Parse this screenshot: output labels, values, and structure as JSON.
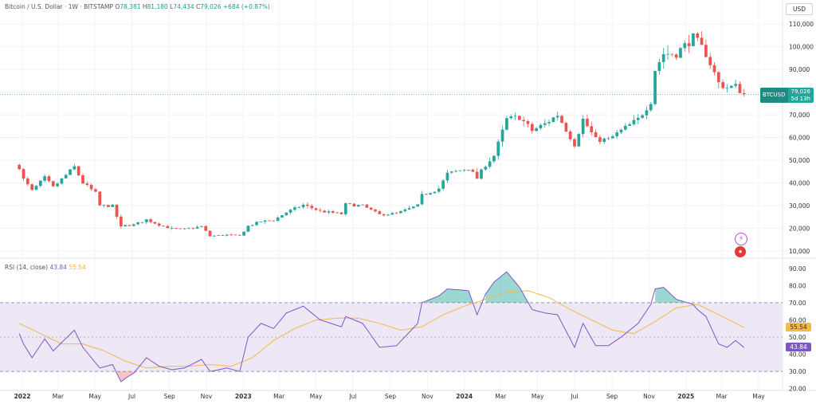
{
  "header": {
    "symbol": "Bitcoin / U.S. Dollar · 1W · BITSTAMP",
    "open_label": "O",
    "open": "78,381",
    "high_label": "H",
    "high": "81,180",
    "low_label": "L",
    "low": "74,434",
    "close_label": "C",
    "close": "79,026",
    "change": "+684 (+0.87%)"
  },
  "currency_button": "USD",
  "price_tag": {
    "symbol": "BTCUSD",
    "price": "79,026",
    "countdown": "5d 13h"
  },
  "rsi_legend": {
    "label": "RSI (14, close)",
    "rsi_value": "43.84",
    "ma_value": "55.54"
  },
  "colors": {
    "up": "#26a69a",
    "down": "#ef5350",
    "rsi": "#7e57c2",
    "rsi_ma": "#f2b94b",
    "band": "#ede7f6",
    "grid": "#f0f3fa"
  },
  "chart_data": [
    {
      "type": "candlestick",
      "title": "Bitcoin / U.S. Dollar · 1W · BITSTAMP",
      "x_tick_labels": [
        "2022",
        "Mar",
        "May",
        "Jul",
        "Sep",
        "Nov",
        "2023",
        "Mar",
        "May",
        "Jul",
        "Sep",
        "Nov",
        "2024",
        "Mar",
        "May",
        "Jul",
        "Sep",
        "Nov",
        "2025",
        "Mar",
        "May"
      ],
      "y_tick_labels": [
        "10,000",
        "20,000",
        "30,000",
        "40,000",
        "50,000",
        "60,000",
        "70,000",
        "80,000",
        "90,000",
        "100,000",
        "110,000"
      ],
      "ylim": [
        7500,
        115000
      ],
      "grid": true,
      "last_price": 79026,
      "close_path": [
        [
          "2021-12-27",
          47000
        ],
        [
          "2022-01-03",
          41500
        ],
        [
          "2022-01-17",
          36500
        ],
        [
          "2022-02-07",
          42200
        ],
        [
          "2022-02-21",
          38000
        ],
        [
          "2022-03-28",
          47000
        ],
        [
          "2022-04-11",
          40000
        ],
        [
          "2022-05-02",
          35500
        ],
        [
          "2022-05-09",
          30000
        ],
        [
          "2022-05-30",
          29800
        ],
        [
          "2022-06-13",
          20500
        ],
        [
          "2022-06-20",
          21200
        ],
        [
          "2022-07-04",
          21500
        ],
        [
          "2022-07-25",
          23800
        ],
        [
          "2022-08-15",
          21500
        ],
        [
          "2022-09-05",
          19800
        ],
        [
          "2022-09-26",
          19500
        ],
        [
          "2022-10-24",
          20800
        ],
        [
          "2022-11-07",
          16500
        ],
        [
          "2022-12-05",
          17100
        ],
        [
          "2022-12-26",
          16600
        ],
        [
          "2023-01-09",
          21000
        ],
        [
          "2023-01-30",
          23000
        ],
        [
          "2023-02-20",
          23500
        ],
        [
          "2023-03-13",
          27000
        ],
        [
          "2023-04-10",
          30300
        ],
        [
          "2023-05-08",
          27500
        ],
        [
          "2023-06-12",
          26300
        ],
        [
          "2023-06-19",
          30500
        ],
        [
          "2023-07-17",
          29900
        ],
        [
          "2023-08-14",
          26000
        ],
        [
          "2023-09-11",
          26500
        ],
        [
          "2023-10-16",
          30000
        ],
        [
          "2023-10-23",
          34500
        ],
        [
          "2023-11-20",
          37500
        ],
        [
          "2023-12-04",
          44000
        ],
        [
          "2024-01-08",
          46500
        ],
        [
          "2024-01-22",
          42000
        ],
        [
          "2024-02-05",
          48000
        ],
        [
          "2024-02-19",
          52000
        ],
        [
          "2024-03-11",
          68000
        ],
        [
          "2024-04-01",
          69000
        ],
        [
          "2024-04-22",
          63000
        ],
        [
          "2024-05-13",
          66000
        ],
        [
          "2024-06-03",
          70000
        ],
        [
          "2024-07-01",
          57000
        ],
        [
          "2024-07-15",
          68000
        ],
        [
          "2024-08-05",
          59000
        ],
        [
          "2024-08-26",
          59000
        ],
        [
          "2024-09-16",
          63000
        ],
        [
          "2024-10-14",
          68000
        ],
        [
          "2024-11-04",
          76000
        ],
        [
          "2024-11-11",
          90000
        ],
        [
          "2024-11-25",
          97000
        ],
        [
          "2024-12-16",
          97000
        ],
        [
          "2025-01-13",
          104000
        ],
        [
          "2025-01-20",
          102000
        ],
        [
          "2025-02-03",
          97000
        ],
        [
          "2025-02-24",
          84000
        ],
        [
          "2025-03-10",
          82000
        ],
        [
          "2025-03-24",
          82500
        ],
        [
          "2025-04-07",
          79026
        ]
      ]
    },
    {
      "type": "line",
      "title": "RSI (14, close)",
      "y_tick_labels": [
        "20.00",
        "30.00",
        "40.00",
        "50.00",
        "60.00",
        "70.00",
        "80.00",
        "90.00"
      ],
      "ylim": [
        18,
        95
      ],
      "bands": [
        30,
        70
      ],
      "midline": 50,
      "series": [
        {
          "name": "RSI",
          "last": 43.84,
          "values": [
            [
              "2021-12-27",
              52
            ],
            [
              "2022-01-03",
              46
            ],
            [
              "2022-01-17",
              38
            ],
            [
              "2022-02-07",
              49
            ],
            [
              "2022-02-21",
              42
            ],
            [
              "2022-03-28",
              54
            ],
            [
              "2022-04-11",
              44
            ],
            [
              "2022-05-09",
              32
            ],
            [
              "2022-05-30",
              34
            ],
            [
              "2022-06-13",
              24
            ],
            [
              "2022-06-20",
              26
            ],
            [
              "2022-07-04",
              29
            ],
            [
              "2022-07-25",
              38
            ],
            [
              "2022-08-15",
              33
            ],
            [
              "2022-09-05",
              31
            ],
            [
              "2022-09-26",
              32
            ],
            [
              "2022-10-24",
              37
            ],
            [
              "2022-11-07",
              30
            ],
            [
              "2022-12-05",
              32
            ],
            [
              "2022-12-26",
              30
            ],
            [
              "2023-01-09",
              50
            ],
            [
              "2023-01-30",
              58
            ],
            [
              "2023-02-20",
              55
            ],
            [
              "2023-03-13",
              64
            ],
            [
              "2023-04-10",
              68
            ],
            [
              "2023-05-08",
              60
            ],
            [
              "2023-06-12",
              56
            ],
            [
              "2023-06-19",
              62
            ],
            [
              "2023-07-17",
              58
            ],
            [
              "2023-08-14",
              44
            ],
            [
              "2023-09-11",
              45
            ],
            [
              "2023-10-16",
              58
            ],
            [
              "2023-10-23",
              70
            ],
            [
              "2023-11-20",
              74
            ],
            [
              "2023-12-04",
              78
            ],
            [
              "2024-01-08",
              77
            ],
            [
              "2024-01-22",
              63
            ],
            [
              "2024-02-05",
              75
            ],
            [
              "2024-02-19",
              82
            ],
            [
              "2024-03-11",
              88
            ],
            [
              "2024-04-01",
              79
            ],
            [
              "2024-04-22",
              66
            ],
            [
              "2024-05-13",
              64
            ],
            [
              "2024-06-03",
              63
            ],
            [
              "2024-07-01",
              44
            ],
            [
              "2024-07-15",
              58
            ],
            [
              "2024-08-05",
              45
            ],
            [
              "2024-08-26",
              45
            ],
            [
              "2024-09-16",
              50
            ],
            [
              "2024-10-14",
              58
            ],
            [
              "2024-11-04",
              69
            ],
            [
              "2024-11-11",
              78
            ],
            [
              "2024-11-25",
              79
            ],
            [
              "2024-12-16",
              72
            ],
            [
              "2025-01-13",
              69
            ],
            [
              "2025-01-20",
              66
            ],
            [
              "2025-02-03",
              62
            ],
            [
              "2025-02-24",
              46
            ],
            [
              "2025-03-10",
              44
            ],
            [
              "2025-03-24",
              48
            ],
            [
              "2025-04-07",
              43.84
            ]
          ]
        },
        {
          "name": "RSI MA",
          "last": 55.54,
          "values": [
            [
              "2021-12-27",
              58
            ],
            [
              "2022-01-31",
              52
            ],
            [
              "2022-03-07",
              46
            ],
            [
              "2022-04-11",
              46
            ],
            [
              "2022-05-16",
              42
            ],
            [
              "2022-06-20",
              36
            ],
            [
              "2022-07-25",
              32
            ],
            [
              "2022-08-29",
              33
            ],
            [
              "2022-10-03",
              33
            ],
            [
              "2022-11-07",
              34
            ],
            [
              "2022-12-12",
              33
            ],
            [
              "2023-01-16",
              38
            ],
            [
              "2023-02-20",
              48
            ],
            [
              "2023-03-27",
              55
            ],
            [
              "2023-05-01",
              60
            ],
            [
              "2023-06-05",
              61
            ],
            [
              "2023-07-10",
              61
            ],
            [
              "2023-08-14",
              58
            ],
            [
              "2023-09-18",
              54
            ],
            [
              "2023-10-23",
              56
            ],
            [
              "2023-11-27",
              63
            ],
            [
              "2024-01-01",
              68
            ],
            [
              "2024-02-05",
              72
            ],
            [
              "2024-03-11",
              76
            ],
            [
              "2024-04-15",
              77
            ],
            [
              "2024-05-20",
              73
            ],
            [
              "2024-06-24",
              66
            ],
            [
              "2024-07-29",
              60
            ],
            [
              "2024-09-02",
              54
            ],
            [
              "2024-10-07",
              52
            ],
            [
              "2024-11-11",
              59
            ],
            [
              "2024-12-16",
              67
            ],
            [
              "2025-01-20",
              69
            ],
            [
              "2025-02-24",
              63
            ],
            [
              "2025-04-07",
              55.54
            ]
          ]
        }
      ]
    }
  ]
}
